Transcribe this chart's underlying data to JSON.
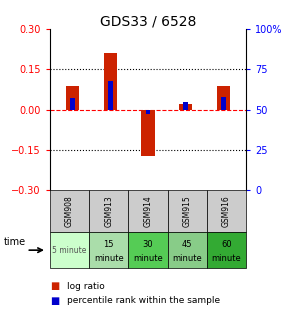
{
  "title": "GDS33 / 6528",
  "samples": [
    "GSM908",
    "GSM913",
    "GSM914",
    "GSM915",
    "GSM916"
  ],
  "time_labels_top": [
    "5 minute",
    "15",
    "30",
    "45",
    "60"
  ],
  "time_labels_bot": [
    "",
    "minute",
    "minute",
    "minute",
    "minute"
  ],
  "time_colors": [
    "#ccffcc",
    "#aaddaa",
    "#55cc55",
    "#88cc88",
    "#33aa33"
  ],
  "log_ratios": [
    0.09,
    0.21,
    -0.175,
    0.02,
    0.09
  ],
  "percentile_ranks": [
    57,
    68,
    47,
    55,
    58
  ],
  "bar_color_red": "#cc2200",
  "bar_color_blue": "#0000cc",
  "ylim_left": [
    -0.3,
    0.3
  ],
  "ylim_right": [
    0,
    100
  ],
  "yticks_left": [
    -0.3,
    -0.15,
    0,
    0.15,
    0.3
  ],
  "yticks_right": [
    0,
    25,
    50,
    75,
    100
  ],
  "dotted_lines": [
    -0.15,
    0.15
  ],
  "background_color": "#ffffff",
  "table_header_bg": "#cccccc",
  "legend_items": [
    "log ratio",
    "percentile rank within the sample"
  ]
}
